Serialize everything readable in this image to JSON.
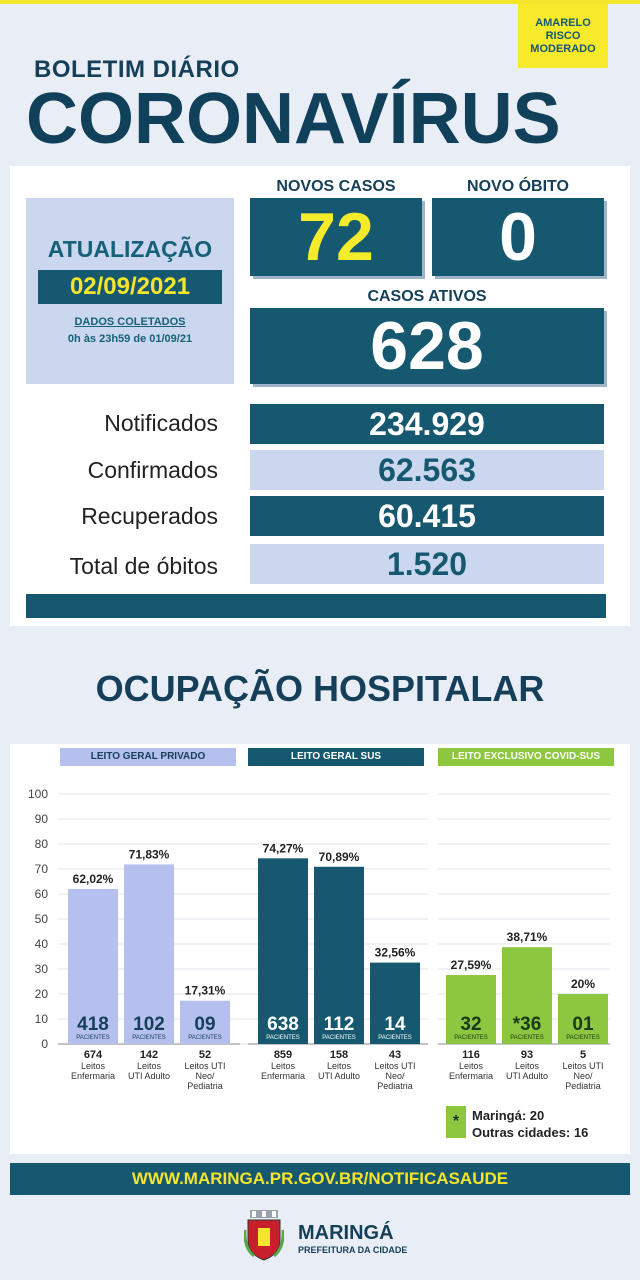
{
  "risk": {
    "line1": "AMARELO",
    "line2": "RISCO",
    "line3": "MODERADO"
  },
  "header": {
    "subtitle": "BOLETIM DIÁRIO",
    "title": "CORONAVÍRUS"
  },
  "update": {
    "title": "ATUALIZAÇÃO",
    "date": "02/09/2021",
    "data_label": "DADOS COLETADOS",
    "range": "0h às 23h59 de 01/09/21"
  },
  "novos_casos": {
    "label": "NOVOS CASOS",
    "value": "72"
  },
  "novo_obito": {
    "label": "NOVO ÓBITO",
    "value": "0"
  },
  "casos_ativos": {
    "label": "CASOS ATIVOS",
    "value": "628"
  },
  "stats": [
    {
      "label": "Notificados",
      "value": "234.929"
    },
    {
      "label": "Confirmados",
      "value": "62.563"
    },
    {
      "label": "Recuperados",
      "value": "60.415"
    },
    {
      "label": "Total de óbitos",
      "value": "1.520"
    }
  ],
  "occupancy_title": "OCUPAÇÃO HOSPITALAR",
  "chart_data": {
    "type": "bar",
    "title": "OCUPAÇÃO HOSPITALAR",
    "ylim": [
      0,
      100
    ],
    "yticks": [
      "0",
      "10",
      "20",
      "30",
      "40",
      "50",
      "60",
      "70",
      "80",
      "90",
      "100"
    ],
    "unit_label": "PACIENTES",
    "groups": [
      {
        "name": "LEITO GERAL PRIVADO",
        "color": "#b6c0ee",
        "header_bg": "#b6c0ee",
        "header_fg": "#16405a",
        "bar_text": "#16405a",
        "bars": [
          {
            "pct": 62.02,
            "pct_label": "62,02%",
            "patients": "418",
            "beds": "674",
            "cat": "Leitos\nEnfermaria"
          },
          {
            "pct": 71.83,
            "pct_label": "71,83%",
            "patients": "102",
            "beds": "142",
            "cat": "Leitos\nUTI Adulto"
          },
          {
            "pct": 17.31,
            "pct_label": "17,31%",
            "patients": "09",
            "beds": "52",
            "cat": "Leitos UTI\nNeo/\nPediatria"
          }
        ]
      },
      {
        "name": "LEITO GERAL SUS",
        "color": "#16586f",
        "header_bg": "#16586f",
        "header_fg": "#ffffff",
        "bar_text": "#ffffff",
        "bars": [
          {
            "pct": 74.27,
            "pct_label": "74,27%",
            "patients": "638",
            "beds": "859",
            "cat": "Leitos\nEnfermaria"
          },
          {
            "pct": 70.89,
            "pct_label": "70,89%",
            "patients": "112",
            "beds": "158",
            "cat": "Leitos\nUTI Adulto"
          },
          {
            "pct": 32.56,
            "pct_label": "32,56%",
            "patients": "14",
            "beds": "43",
            "cat": "Leitos UTI\nNeo/\nPediatria"
          }
        ]
      },
      {
        "name": "LEITO EXCLUSIVO COVID-SUS",
        "color": "#8dc63f",
        "header_bg": "#8dc63f",
        "header_fg": "#ffffff",
        "bar_text": "#1a3a1a",
        "bars": [
          {
            "pct": 27.59,
            "pct_label": "27,59%",
            "patients": "32",
            "beds": "116",
            "cat": "Leitos\nEnfermaria"
          },
          {
            "pct": 38.71,
            "pct_label": "38,71%",
            "patients": "*36",
            "beds": "93",
            "cat": "Leitos\nUTI Adulto"
          },
          {
            "pct": 20,
            "pct_label": "20%",
            "patients": "01",
            "beds": "5",
            "cat": "Leitos UTI\nNeo/\nPediatria"
          }
        ]
      }
    ]
  },
  "legend": {
    "symbol": "*",
    "line1": "Maringá: 20",
    "line2": "Outras cidades: 16"
  },
  "footer": {
    "url": "WWW.MARINGA.PR.GOV.BR/NOTIFICASAUDE",
    "city": "MARINGÁ",
    "org": "PREFEITURA DA CIDADE"
  },
  "colors": {
    "dark": "#16586f",
    "yellow": "#f4e42c",
    "light": "#cad7ee",
    "green": "#8dc63f",
    "lavender": "#b6c0ee"
  }
}
